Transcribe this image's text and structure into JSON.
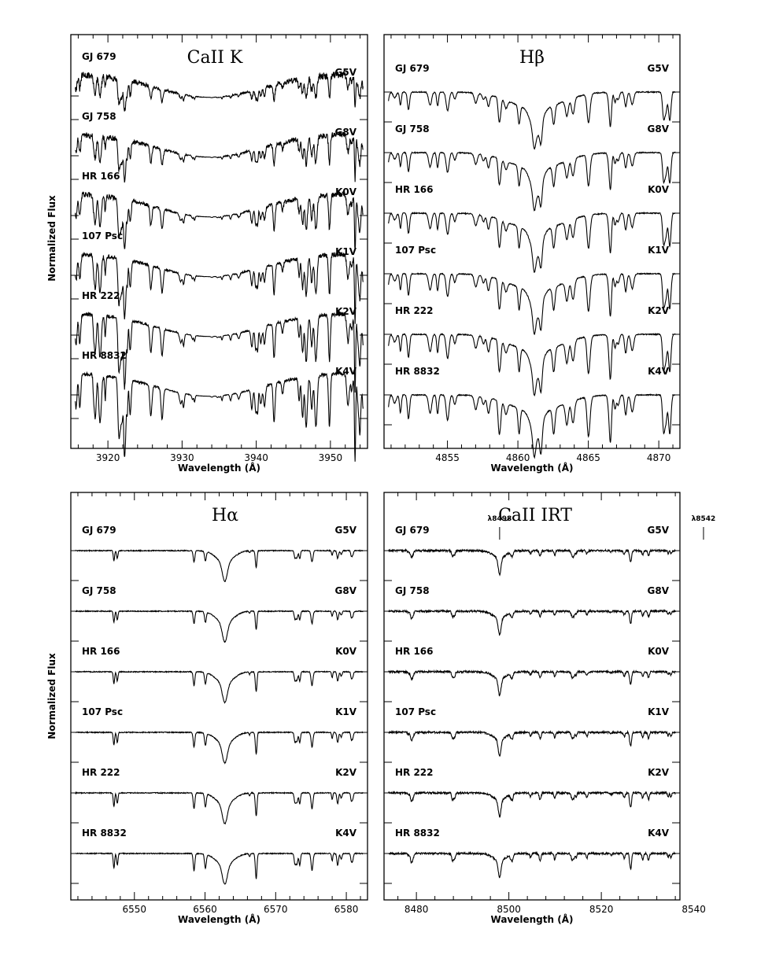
{
  "figure": {
    "ylabel": "Normalized Flux",
    "xlabel": "Wavelength (Å)"
  },
  "chart_data": [
    {
      "type": "line",
      "title": "CaII  K",
      "xlabel": "Wavelength (Å)",
      "ylabel": "Normalized Flux",
      "xlim": [
        3915,
        3955
      ],
      "xticks": [
        3920,
        3930,
        3940,
        3950
      ],
      "line_center": 3933.7,
      "profile": "broad",
      "series": [
        {
          "name": "GJ  679",
          "sptype": "G5V"
        },
        {
          "name": "GJ  758",
          "sptype": "G8V"
        },
        {
          "name": "HR  166",
          "sptype": "K0V"
        },
        {
          "name": "107  Psc",
          "sptype": "K1V"
        },
        {
          "name": "HR  222",
          "sptype": "K2V"
        },
        {
          "name": "HR  8832",
          "sptype": "K4V"
        }
      ],
      "annotations": []
    },
    {
      "type": "line",
      "title": "Hβ",
      "xlabel": "Wavelength (Å)",
      "ylabel": "",
      "xlim": [
        4850.5,
        4871.5
      ],
      "xticks": [
        4855,
        4860,
        4865,
        4870
      ],
      "line_center": 4861.3,
      "profile": "dense",
      "series": [
        {
          "name": "GJ  679",
          "sptype": "G5V"
        },
        {
          "name": "GJ  758",
          "sptype": "G8V"
        },
        {
          "name": "HR  166",
          "sptype": "K0V"
        },
        {
          "name": "107  Psc",
          "sptype": "K1V"
        },
        {
          "name": "HR  222",
          "sptype": "K2V"
        },
        {
          "name": "HR  8832",
          "sptype": "K4V"
        }
      ],
      "annotations": []
    },
    {
      "type": "line",
      "title": "Hα",
      "xlabel": "Wavelength (Å)",
      "ylabel": "Normalized Flux",
      "xlim": [
        6541,
        6583
      ],
      "xticks": [
        6550,
        6560,
        6570,
        6580
      ],
      "line_center": 6562.8,
      "profile": "sparse",
      "series": [
        {
          "name": "GJ  679",
          "sptype": "G5V"
        },
        {
          "name": "GJ  758",
          "sptype": "G8V"
        },
        {
          "name": "HR  166",
          "sptype": "K0V"
        },
        {
          "name": "107  Psc",
          "sptype": "K1V"
        },
        {
          "name": "HR  222",
          "sptype": "K2V"
        },
        {
          "name": "HR  8832",
          "sptype": "K4V"
        }
      ],
      "annotations": []
    },
    {
      "type": "line",
      "title": "CaII  IRT",
      "xlabel": "Wavelength (Å)",
      "ylabel": "",
      "xlim": [
        8473,
        8537
      ],
      "xticks": [
        8480,
        8500,
        8520,
        8540
      ],
      "line_center": 8542.1,
      "second_line_center": 8498.0,
      "profile": "irt",
      "series": [
        {
          "name": "GJ  679",
          "sptype": "G5V"
        },
        {
          "name": "GJ  758",
          "sptype": "G8V"
        },
        {
          "name": "HR  166",
          "sptype": "K0V"
        },
        {
          "name": "107  Psc",
          "sptype": "K1V"
        },
        {
          "name": "HR  222",
          "sptype": "K2V"
        },
        {
          "name": "HR  8832",
          "sptype": "K4V"
        }
      ],
      "annotations": [
        {
          "text": "λ8498",
          "x": 8498.0
        },
        {
          "text": "λ8542",
          "x": 8542.1
        }
      ]
    }
  ]
}
